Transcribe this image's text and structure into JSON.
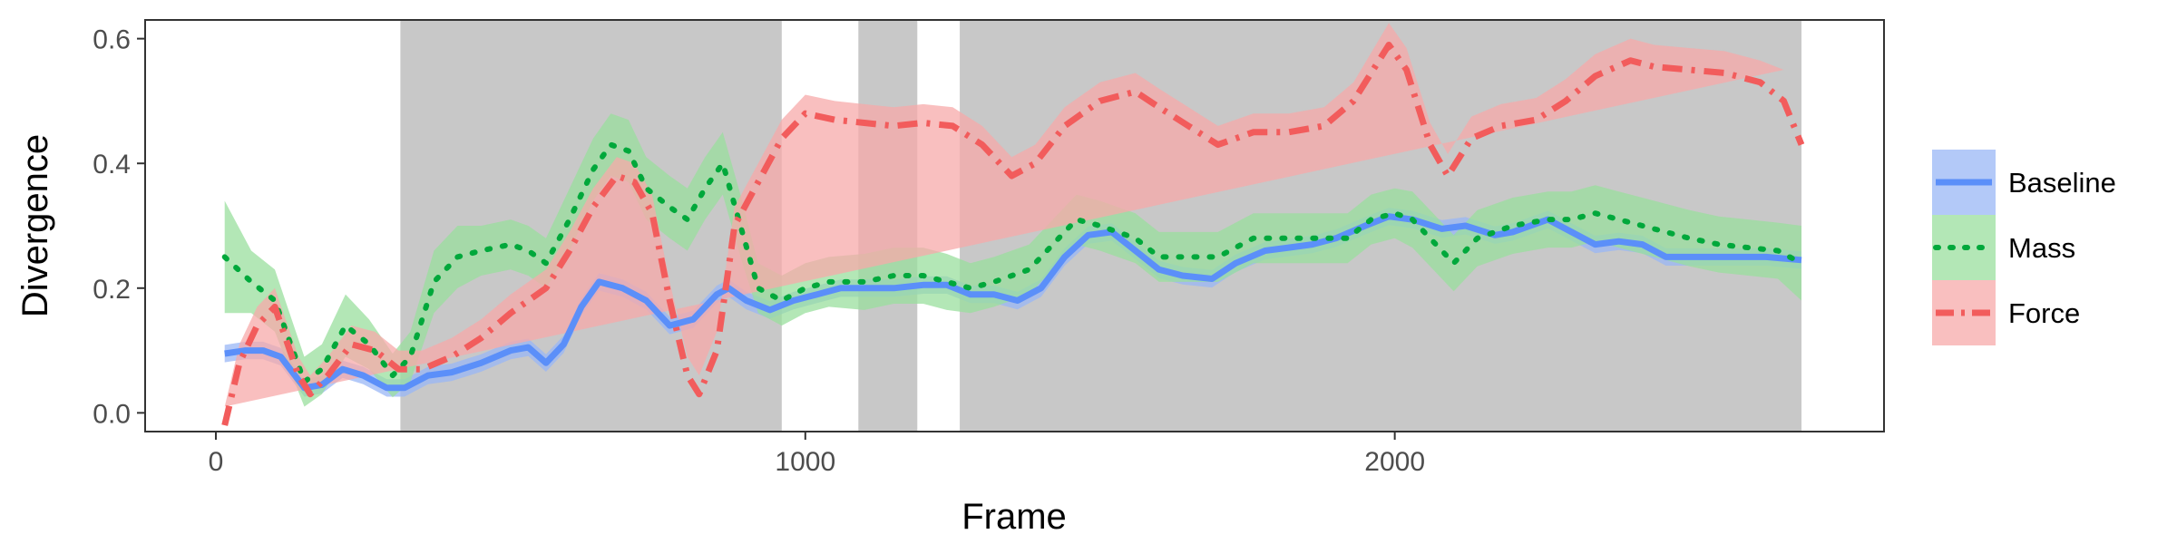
{
  "chart_data": {
    "type": "line",
    "xlabel": "Frame",
    "ylabel": "Divergence",
    "xlim": [
      -120,
      2830
    ],
    "ylim": [
      -0.03,
      0.63
    ],
    "x_ticks": [
      0,
      1000,
      2000
    ],
    "x_tick_labels": [
      "0",
      "1000",
      "2000"
    ],
    "y_ticks": [
      0.0,
      0.2,
      0.4,
      0.6
    ],
    "y_tick_labels": [
      "0.0",
      "0.2",
      "0.4",
      "0.6"
    ],
    "grid": false,
    "legend_position": "right",
    "shaded_regions": [
      [
        313,
        960
      ],
      [
        1090,
        1190
      ],
      [
        1262,
        2690
      ]
    ],
    "shaded_color": "#c8c8c8",
    "series": [
      {
        "name": "Baseline",
        "color": "#5b8ff9",
        "band_color": "#9ab7f5",
        "line_style": "solid",
        "points": [
          [
            15,
            0.095
          ],
          [
            50,
            0.1
          ],
          [
            80,
            0.1
          ],
          [
            110,
            0.09
          ],
          [
            150,
            0.04
          ],
          [
            180,
            0.045
          ],
          [
            215,
            0.07
          ],
          [
            250,
            0.06
          ],
          [
            290,
            0.04
          ],
          [
            320,
            0.04
          ],
          [
            360,
            0.06
          ],
          [
            400,
            0.065
          ],
          [
            450,
            0.08
          ],
          [
            500,
            0.1
          ],
          [
            530,
            0.105
          ],
          [
            560,
            0.08
          ],
          [
            590,
            0.11
          ],
          [
            620,
            0.17
          ],
          [
            650,
            0.21
          ],
          [
            690,
            0.2
          ],
          [
            730,
            0.18
          ],
          [
            770,
            0.14
          ],
          [
            810,
            0.15
          ],
          [
            850,
            0.19
          ],
          [
            870,
            0.2
          ],
          [
            900,
            0.18
          ],
          [
            940,
            0.165
          ],
          [
            980,
            0.18
          ],
          [
            1020,
            0.19
          ],
          [
            1060,
            0.2
          ],
          [
            1100,
            0.2
          ],
          [
            1150,
            0.2
          ],
          [
            1200,
            0.205
          ],
          [
            1240,
            0.205
          ],
          [
            1280,
            0.19
          ],
          [
            1320,
            0.19
          ],
          [
            1360,
            0.18
          ],
          [
            1400,
            0.2
          ],
          [
            1440,
            0.25
          ],
          [
            1480,
            0.285
          ],
          [
            1520,
            0.29
          ],
          [
            1560,
            0.26
          ],
          [
            1600,
            0.23
          ],
          [
            1640,
            0.22
          ],
          [
            1690,
            0.215
          ],
          [
            1730,
            0.24
          ],
          [
            1780,
            0.26
          ],
          [
            1820,
            0.265
          ],
          [
            1860,
            0.27
          ],
          [
            1900,
            0.28
          ],
          [
            1950,
            0.3
          ],
          [
            1990,
            0.315
          ],
          [
            2030,
            0.31
          ],
          [
            2080,
            0.295
          ],
          [
            2120,
            0.3
          ],
          [
            2170,
            0.285
          ],
          [
            2200,
            0.29
          ],
          [
            2260,
            0.31
          ],
          [
            2300,
            0.29
          ],
          [
            2340,
            0.27
          ],
          [
            2380,
            0.275
          ],
          [
            2420,
            0.27
          ],
          [
            2460,
            0.25
          ],
          [
            2500,
            0.25
          ],
          [
            2540,
            0.25
          ],
          [
            2580,
            0.25
          ],
          [
            2630,
            0.25
          ],
          [
            2690,
            0.245
          ]
        ],
        "band_halfwidth": [
          0.014,
          0.014,
          0.014,
          0.014,
          0.014,
          0.014,
          0.014,
          0.014,
          0.014,
          0.014,
          0.014,
          0.014,
          0.014,
          0.014,
          0.014,
          0.014,
          0.014,
          0.014,
          0.014,
          0.014,
          0.014,
          0.014,
          0.014,
          0.014,
          0.014,
          0.014,
          0.014,
          0.014,
          0.014,
          0.014,
          0.014,
          0.014,
          0.014,
          0.014,
          0.014,
          0.014,
          0.014,
          0.014,
          0.014,
          0.014,
          0.014,
          0.014,
          0.014,
          0.014,
          0.014,
          0.014,
          0.014,
          0.014,
          0.014,
          0.014,
          0.014,
          0.014,
          0.014,
          0.014,
          0.014,
          0.014,
          0.014,
          0.014,
          0.014,
          0.014,
          0.014,
          0.014,
          0.014,
          0.014,
          0.014,
          0.014,
          0.014,
          0.014
        ]
      },
      {
        "name": "Mass",
        "color": "#00a83b",
        "band_color": "#9adf9e",
        "line_style": "dotted",
        "points": [
          [
            15,
            0.25
          ],
          [
            60,
            0.21
          ],
          [
            100,
            0.18
          ],
          [
            150,
            0.05
          ],
          [
            180,
            0.07
          ],
          [
            220,
            0.14
          ],
          [
            260,
            0.11
          ],
          [
            300,
            0.06
          ],
          [
            330,
            0.09
          ],
          [
            370,
            0.21
          ],
          [
            410,
            0.25
          ],
          [
            450,
            0.26
          ],
          [
            500,
            0.27
          ],
          [
            530,
            0.26
          ],
          [
            560,
            0.24
          ],
          [
            600,
            0.31
          ],
          [
            640,
            0.39
          ],
          [
            670,
            0.43
          ],
          [
            700,
            0.42
          ],
          [
            730,
            0.36
          ],
          [
            770,
            0.33
          ],
          [
            800,
            0.31
          ],
          [
            830,
            0.36
          ],
          [
            860,
            0.4
          ],
          [
            890,
            0.3
          ],
          [
            920,
            0.2
          ],
          [
            960,
            0.18
          ],
          [
            1000,
            0.2
          ],
          [
            1040,
            0.21
          ],
          [
            1100,
            0.21
          ],
          [
            1150,
            0.22
          ],
          [
            1200,
            0.22
          ],
          [
            1240,
            0.21
          ],
          [
            1280,
            0.2
          ],
          [
            1320,
            0.21
          ],
          [
            1380,
            0.23
          ],
          [
            1420,
            0.27
          ],
          [
            1460,
            0.31
          ],
          [
            1500,
            0.3
          ],
          [
            1560,
            0.28
          ],
          [
            1600,
            0.25
          ],
          [
            1650,
            0.25
          ],
          [
            1700,
            0.25
          ],
          [
            1760,
            0.28
          ],
          [
            1820,
            0.28
          ],
          [
            1860,
            0.28
          ],
          [
            1920,
            0.28
          ],
          [
            1960,
            0.31
          ],
          [
            2000,
            0.32
          ],
          [
            2030,
            0.31
          ],
          [
            2060,
            0.28
          ],
          [
            2100,
            0.24
          ],
          [
            2140,
            0.28
          ],
          [
            2200,
            0.3
          ],
          [
            2260,
            0.31
          ],
          [
            2300,
            0.31
          ],
          [
            2340,
            0.32
          ],
          [
            2380,
            0.31
          ],
          [
            2420,
            0.3
          ],
          [
            2460,
            0.29
          ],
          [
            2500,
            0.28
          ],
          [
            2550,
            0.27
          ],
          [
            2600,
            0.265
          ],
          [
            2650,
            0.26
          ],
          [
            2690,
            0.24
          ]
        ],
        "band_halfwidth": [
          0.09,
          0.05,
          0.05,
          0.04,
          0.04,
          0.05,
          0.04,
          0.035,
          0.04,
          0.05,
          0.05,
          0.04,
          0.04,
          0.04,
          0.04,
          0.05,
          0.05,
          0.05,
          0.05,
          0.05,
          0.05,
          0.05,
          0.05,
          0.05,
          0.05,
          0.04,
          0.04,
          0.04,
          0.04,
          0.045,
          0.045,
          0.045,
          0.045,
          0.04,
          0.04,
          0.04,
          0.04,
          0.04,
          0.04,
          0.04,
          0.04,
          0.04,
          0.04,
          0.04,
          0.04,
          0.04,
          0.04,
          0.04,
          0.04,
          0.045,
          0.045,
          0.045,
          0.045,
          0.045,
          0.045,
          0.045,
          0.045,
          0.045,
          0.045,
          0.045,
          0.045,
          0.045,
          0.045,
          0.045,
          0.06
        ]
      },
      {
        "name": "Force",
        "color": "#f25c5c",
        "band_color": "#f7aaaa",
        "line_style": "dashdot",
        "points": [
          [
            15,
            -0.02
          ],
          [
            40,
            0.08
          ],
          [
            70,
            0.14
          ],
          [
            100,
            0.17
          ],
          [
            140,
            0.06
          ],
          [
            160,
            0.03
          ],
          [
            190,
            0.06
          ],
          [
            230,
            0.11
          ],
          [
            270,
            0.1
          ],
          [
            310,
            0.07
          ],
          [
            350,
            0.07
          ],
          [
            400,
            0.09
          ],
          [
            450,
            0.12
          ],
          [
            500,
            0.16
          ],
          [
            560,
            0.2
          ],
          [
            600,
            0.26
          ],
          [
            640,
            0.33
          ],
          [
            680,
            0.38
          ],
          [
            710,
            0.37
          ],
          [
            740,
            0.32
          ],
          [
            770,
            0.18
          ],
          [
            800,
            0.06
          ],
          [
            820,
            0.03
          ],
          [
            850,
            0.1
          ],
          [
            880,
            0.3
          ],
          [
            920,
            0.37
          ],
          [
            960,
            0.44
          ],
          [
            1000,
            0.48
          ],
          [
            1050,
            0.47
          ],
          [
            1100,
            0.465
          ],
          [
            1150,
            0.46
          ],
          [
            1200,
            0.465
          ],
          [
            1250,
            0.46
          ],
          [
            1300,
            0.43
          ],
          [
            1350,
            0.38
          ],
          [
            1390,
            0.4
          ],
          [
            1440,
            0.46
          ],
          [
            1500,
            0.5
          ],
          [
            1560,
            0.515
          ],
          [
            1600,
            0.49
          ],
          [
            1650,
            0.46
          ],
          [
            1700,
            0.43
          ],
          [
            1760,
            0.45
          ],
          [
            1820,
            0.45
          ],
          [
            1880,
            0.46
          ],
          [
            1930,
            0.5
          ],
          [
            1990,
            0.59
          ],
          [
            2020,
            0.55
          ],
          [
            2060,
            0.43
          ],
          [
            2090,
            0.38
          ],
          [
            2130,
            0.44
          ],
          [
            2180,
            0.46
          ],
          [
            2240,
            0.47
          ],
          [
            2290,
            0.5
          ],
          [
            2340,
            0.54
          ],
          [
            2400,
            0.565
          ],
          [
            2440,
            0.555
          ],
          [
            2500,
            0.55
          ],
          [
            2560,
            0.545
          ],
          [
            2620,
            0.53
          ],
          [
            2660,
            0.5
          ],
          [
            2690,
            0.43
          ]
        ],
        "band_halfwidth": [
          0.03,
          0.03,
          0.03,
          0.03,
          0.03,
          0.03,
          0.03,
          0.03,
          0.03,
          0.03,
          0.03,
          0.03,
          0.03,
          0.03,
          0.03,
          0.03,
          0.03,
          0.03,
          0.03,
          0.03,
          0.03,
          0.03,
          0.03,
          0.03,
          0.03,
          0.03,
          0.03,
          0.03,
          0.03,
          0.03,
          0.03,
          0.03,
          0.03,
          0.03,
          0.03,
          0.03,
          0.03,
          0.03,
          0.03,
          0.03,
          0.03,
          0.03,
          0.03,
          0.03,
          0.03,
          0.03,
          0.035,
          0.035,
          0.035,
          0.035,
          0.035,
          0.035,
          0.035,
          0.035,
          0.035,
          0.035,
          0.035,
          0.035,
          0.035,
          0.035,
          0.05
        ]
      }
    ]
  }
}
